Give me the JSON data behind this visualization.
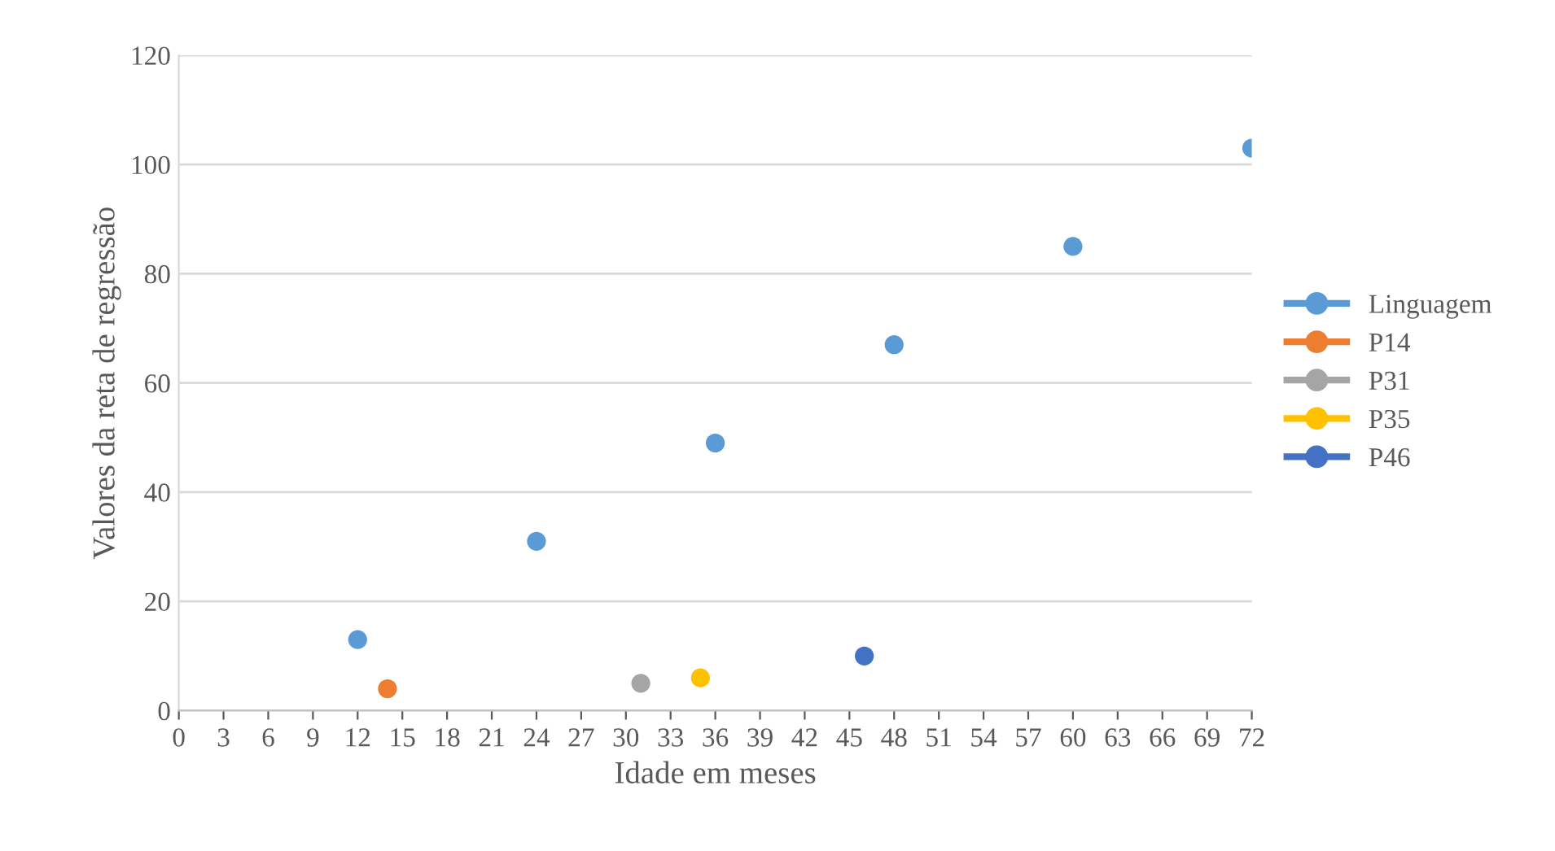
{
  "chart_data": {
    "type": "scatter",
    "xlabel": "Idade em meses",
    "ylabel": "Valores da reta de regressão",
    "xlim": [
      0,
      72
    ],
    "xticks": [
      0,
      3,
      6,
      9,
      12,
      15,
      18,
      21,
      24,
      27,
      30,
      33,
      36,
      39,
      42,
      45,
      48,
      51,
      54,
      57,
      60,
      63,
      66,
      69,
      72
    ],
    "ylim": [
      0,
      120
    ],
    "yticks": [
      0,
      20,
      40,
      60,
      80,
      100,
      120
    ],
    "grid": "y",
    "legend": "right",
    "marker": "circle",
    "series": [
      {
        "name": "Linguagem",
        "color": "#5b9bd5",
        "x": [
          12,
          24,
          36,
          48,
          60,
          72
        ],
        "values": [
          13,
          31,
          49,
          67,
          85,
          103
        ]
      },
      {
        "name": "P14",
        "color": "#ed7d31",
        "x": [
          14
        ],
        "values": [
          4
        ]
      },
      {
        "name": "P31",
        "color": "#a5a5a5",
        "x": [
          31
        ],
        "values": [
          5
        ]
      },
      {
        "name": "P35",
        "color": "#ffc000",
        "x": [
          35
        ],
        "values": [
          6
        ]
      },
      {
        "name": "P46",
        "color": "#4472c4",
        "x": [
          46
        ],
        "values": [
          10
        ]
      }
    ]
  }
}
